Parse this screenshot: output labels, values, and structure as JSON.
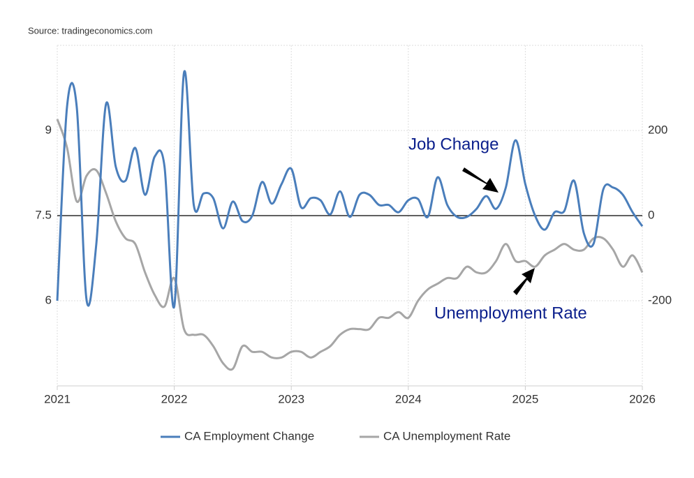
{
  "source": "Source: tradingeconomics.com",
  "chart_data": {
    "type": "line",
    "annotations": [
      "Job Change",
      "Unemployment Rate"
    ],
    "categories": [
      "2021",
      null,
      null,
      null,
      null,
      null,
      null,
      null,
      null,
      null,
      null,
      null,
      "2022",
      null,
      null,
      null,
      null,
      null,
      null,
      null,
      null,
      null,
      null,
      null,
      "2023",
      null,
      null,
      null,
      null,
      null,
      null,
      null,
      null,
      null,
      null,
      null,
      "2024",
      null,
      null,
      null,
      null,
      null,
      null,
      null,
      null,
      null,
      null,
      null,
      "2025",
      null,
      null,
      null,
      null,
      null,
      null,
      null,
      null,
      null,
      null,
      null,
      "2026"
    ],
    "ylim": [
      4.5,
      10.5
    ],
    "yticks": [
      6,
      7.5,
      9
    ],
    "y2lim": [
      -400,
      400
    ],
    "y2ticks": [
      -200,
      0,
      200
    ],
    "grid": true,
    "legend": "bottom",
    "series": [
      {
        "name": "CA Employment Change",
        "color": "#4a7ebb",
        "axis": "y2",
        "values": [
          -200,
          255,
          255,
          -197,
          -68,
          262,
          115,
          82,
          159,
          49,
          139,
          115,
          -213,
          336,
          25,
          52,
          41,
          -30,
          33,
          -13,
          0,
          79,
          28,
          74,
          110,
          20,
          41,
          36,
          3,
          57,
          -3,
          49,
          49,
          25,
          25,
          8,
          36,
          39,
          -3,
          90,
          25,
          -3,
          -3,
          16,
          46,
          16,
          66,
          177,
          74,
          0,
          -33,
          8,
          11,
          82,
          -41,
          -66,
          62,
          66,
          49,
          8,
          -25
        ]
      },
      {
        "name": "CA Unemployment Rate",
        "color": "#a6a6a6",
        "values": [
          9.2,
          8.7,
          7.75,
          8.2,
          8.3,
          7.9,
          7.4,
          7.1,
          7.0,
          6.5,
          6.1,
          5.9,
          6.4,
          5.5,
          5.4,
          5.4,
          5.2,
          4.9,
          4.8,
          5.2,
          5.1,
          5.1,
          5.0,
          5.0,
          5.1,
          5.1,
          5.0,
          5.1,
          5.2,
          5.4,
          5.5,
          5.5,
          5.5,
          5.7,
          5.7,
          5.8,
          5.7,
          6.0,
          6.2,
          6.3,
          6.4,
          6.4,
          6.6,
          6.5,
          6.5,
          6.7,
          7.0,
          6.7,
          6.7,
          6.6,
          6.8,
          6.9,
          7.0,
          6.9,
          6.9,
          7.1,
          7.1,
          6.9,
          6.6,
          6.8,
          6.5
        ]
      }
    ]
  }
}
